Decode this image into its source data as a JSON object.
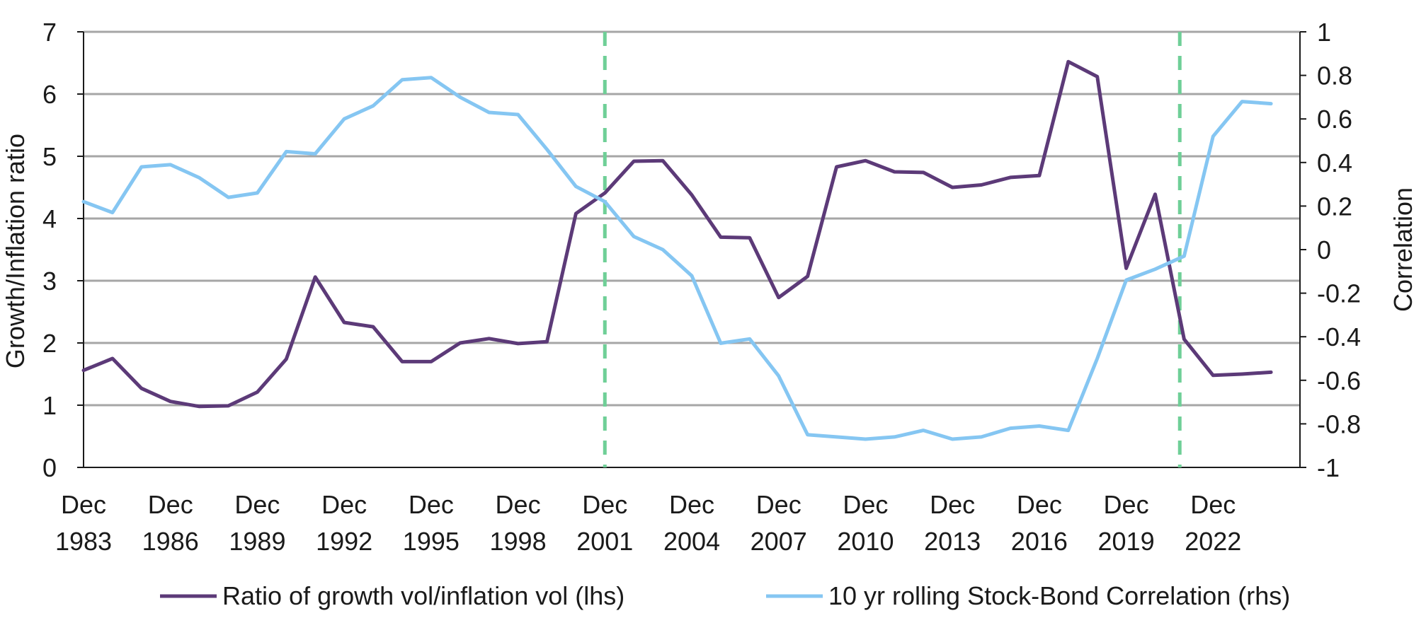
{
  "chart_data": {
    "type": "line",
    "title": "",
    "xlabel": "",
    "ylabel": "Growth/Inflation ratio",
    "y2label": "Correlation",
    "ylim": [
      0,
      7
    ],
    "y2lim": [
      -1,
      1
    ],
    "yticks": [
      "0",
      "1",
      "2",
      "3",
      "4",
      "5",
      "6",
      "7"
    ],
    "y2ticks": [
      "-1",
      "-0.8",
      "-0.6",
      "-0.4",
      "-0.2",
      "0",
      "0.2",
      "0.4",
      "0.6",
      "0.8",
      "1"
    ],
    "x_tick_labels": [
      {
        "year": 1983,
        "line1": "Dec",
        "line2": "1983"
      },
      {
        "year": 1986,
        "line1": "Dec",
        "line2": "1986"
      },
      {
        "year": 1989,
        "line1": "Dec",
        "line2": "1989"
      },
      {
        "year": 1992,
        "line1": "Dec",
        "line2": "1992"
      },
      {
        "year": 1995,
        "line1": "Dec",
        "line2": "1995"
      },
      {
        "year": 1998,
        "line1": "Dec",
        "line2": "1998"
      },
      {
        "year": 2001,
        "line1": "Dec",
        "line2": "2001"
      },
      {
        "year": 2004,
        "line1": "Dec",
        "line2": "2004"
      },
      {
        "year": 2007,
        "line1": "Dec",
        "line2": "2007"
      },
      {
        "year": 2010,
        "line1": "Dec",
        "line2": "2010"
      },
      {
        "year": 2013,
        "line1": "Dec",
        "line2": "2013"
      },
      {
        "year": 2016,
        "line1": "Dec",
        "line2": "2016"
      },
      {
        "year": 2019,
        "line1": "Dec",
        "line2": "2019"
      },
      {
        "year": 2022,
        "line1": "Dec",
        "line2": "2022"
      }
    ],
    "x_start": 1983,
    "x_end": 2025,
    "x": [
      1983,
      1984,
      1985,
      1986,
      1987,
      1988,
      1989,
      1990,
      1991,
      1992,
      1993,
      1994,
      1995,
      1996,
      1997,
      1998,
      1999,
      2000,
      2001,
      2002,
      2003,
      2004,
      2005,
      2006,
      2007,
      2008,
      2009,
      2010,
      2011,
      2012,
      2013,
      2014,
      2015,
      2016,
      2017,
      2018,
      2019,
      2020,
      2021,
      2022,
      2023,
      2024
    ],
    "series": [
      {
        "name": "Ratio of growth vol/inflation vol (lhs)",
        "axis": "left",
        "color": "#5c3a78",
        "values": [
          1.56,
          1.75,
          1.27,
          1.06,
          0.98,
          0.99,
          1.21,
          1.74,
          3.06,
          2.33,
          2.26,
          1.7,
          1.7,
          2.0,
          2.07,
          1.99,
          2.02,
          4.08,
          4.41,
          4.92,
          4.93,
          4.38,
          3.7,
          3.69,
          2.73,
          3.07,
          4.83,
          4.93,
          4.75,
          4.74,
          4.5,
          4.54,
          4.66,
          4.69,
          6.52,
          6.28,
          3.2,
          4.39,
          2.06,
          1.48,
          1.5,
          1.53
        ]
      },
      {
        "name": "10 yr rolling Stock-Bond Correlation (rhs)",
        "axis": "right",
        "color": "#85c6f2",
        "values": [
          0.22,
          0.17,
          0.38,
          0.39,
          0.33,
          0.24,
          0.26,
          0.45,
          0.44,
          0.6,
          0.66,
          0.78,
          0.79,
          0.7,
          0.63,
          0.62,
          0.46,
          0.29,
          0.22,
          0.06,
          0.0,
          -0.12,
          -0.43,
          -0.41,
          -0.58,
          -0.85,
          -0.86,
          -0.87,
          -0.86,
          -0.83,
          -0.87,
          -0.86,
          -0.82,
          -0.81,
          -0.83,
          -0.5,
          -0.14,
          -0.09,
          -0.03,
          0.52,
          0.68,
          0.67
        ]
      }
    ],
    "reference_lines": [
      {
        "x": 2001,
        "color": "#6fcf97",
        "style": "dashed"
      },
      {
        "x": 2020.85,
        "color": "#6fcf97",
        "style": "dashed"
      }
    ],
    "legend_position": "bottom"
  }
}
